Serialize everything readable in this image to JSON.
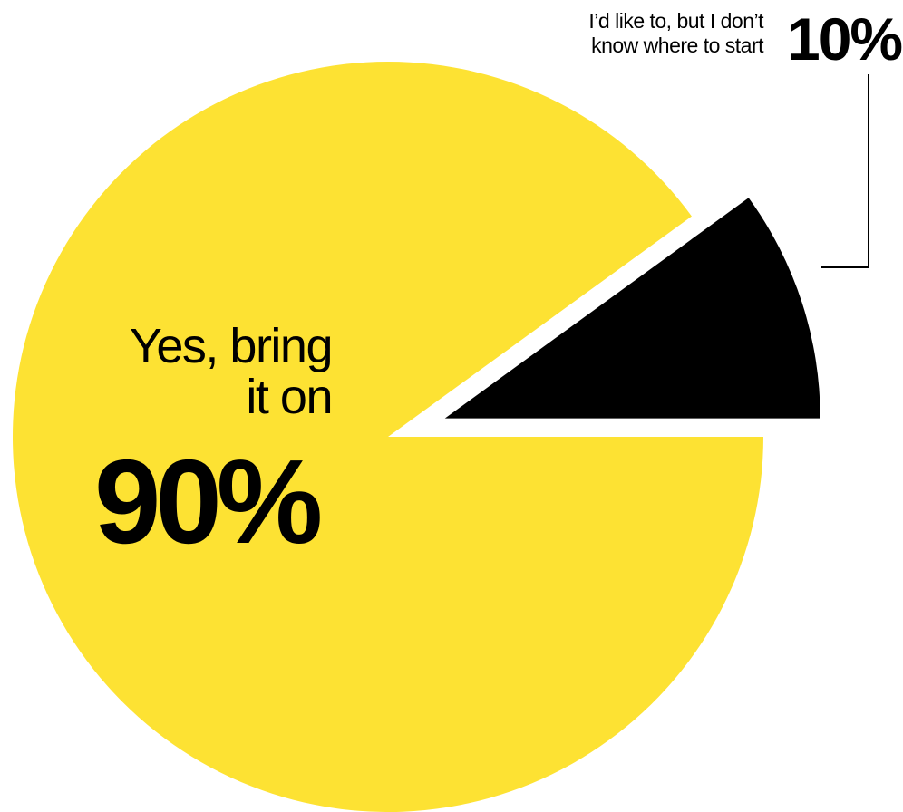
{
  "chart_data": {
    "type": "pie",
    "categories": [
      "Yes, bring\nit on",
      "I’d like to, but I don’t\nknow where to start"
    ],
    "values": [
      90,
      10
    ],
    "value_labels": [
      "90%",
      "10%"
    ],
    "colors": [
      "#FDE233",
      "#000000"
    ],
    "exploded_slice": 1,
    "title": "",
    "legend": "none"
  }
}
